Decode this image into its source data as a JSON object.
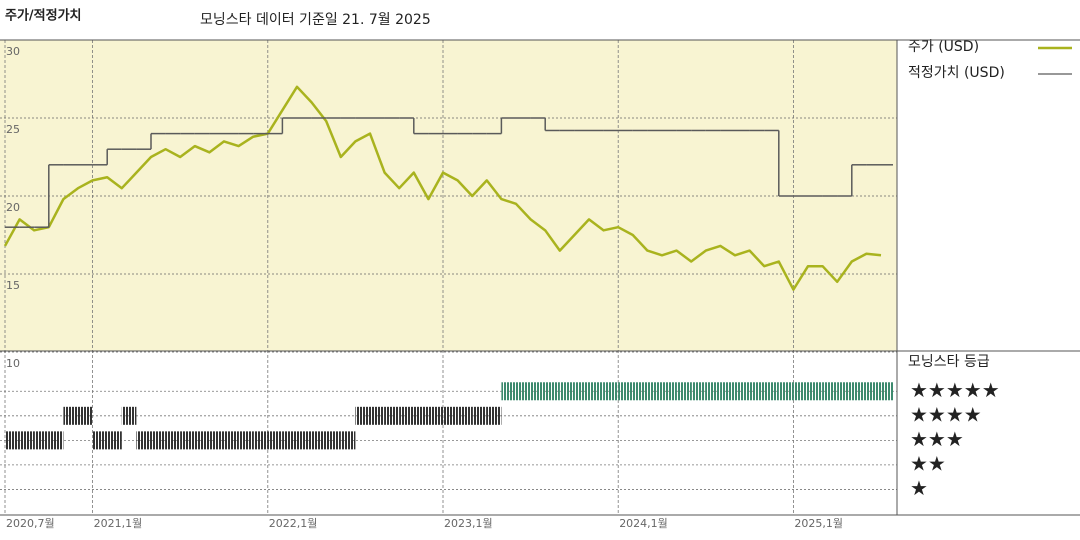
{
  "chart_data": [
    {
      "type": "line",
      "title": "주가/적정가치",
      "subtitle": "모닝스타 데이터 기준일 21. 7월 2025",
      "x": [
        "2020-07",
        "2020-08",
        "2020-09",
        "2020-10",
        "2020-11",
        "2020-12",
        "2021-01",
        "2021-02",
        "2021-03",
        "2021-04",
        "2021-05",
        "2021-06",
        "2021-07",
        "2021-08",
        "2021-09",
        "2021-10",
        "2021-11",
        "2021-12",
        "2022-01",
        "2022-02",
        "2022-03",
        "2022-04",
        "2022-05",
        "2022-06",
        "2022-07",
        "2022-08",
        "2022-09",
        "2022-10",
        "2022-11",
        "2022-12",
        "2023-01",
        "2023-02",
        "2023-03",
        "2023-04",
        "2023-05",
        "2023-06",
        "2023-07",
        "2023-08",
        "2023-09",
        "2023-10",
        "2023-11",
        "2023-12",
        "2024-01",
        "2024-02",
        "2024-03",
        "2024-04",
        "2024-05",
        "2024-06",
        "2024-07",
        "2024-08",
        "2024-09",
        "2024-10",
        "2024-11",
        "2024-12",
        "2025-01",
        "2025-02",
        "2025-03",
        "2025-04",
        "2025-05",
        "2025-06",
        "2025-07"
      ],
      "xticks": [
        {
          "value": "2020-07",
          "label": "2020,7월"
        },
        {
          "value": "2021-01",
          "label": "2021,1월"
        },
        {
          "value": "2022-01",
          "label": "2022,1월"
        },
        {
          "value": "2023-01",
          "label": "2023,1월"
        },
        {
          "value": "2024-01",
          "label": "2024,1월"
        },
        {
          "value": "2025-01",
          "label": "2025,1월"
        }
      ],
      "ylim": [
        10,
        30
      ],
      "yticks": [
        10,
        15,
        20,
        25,
        30
      ],
      "grid": true,
      "series": [
        {
          "name": "주가 (USD)",
          "color": "#a9b31e",
          "values": [
            16.8,
            18.5,
            17.8,
            18.0,
            19.8,
            20.5,
            21,
            21.2,
            20.5,
            21.5,
            22.5,
            23,
            22.5,
            23.2,
            22.8,
            23.5,
            23.2,
            23.8,
            24,
            25.5,
            27,
            26,
            24.8,
            22.5,
            23.5,
            24,
            21.5,
            20.5,
            21.5,
            19.8,
            21.5,
            21,
            20,
            21,
            19.8,
            19.5,
            18.5,
            17.8,
            16.5,
            17.5,
            18.5,
            17.8,
            18,
            17.5,
            16.5,
            16.2,
            16.5,
            15.8,
            16.5,
            16.8,
            16.2,
            16.5,
            15.5,
            15.8,
            14,
            15.5,
            15.5,
            14.5,
            15.8,
            16.3,
            16.2
          ]
        },
        {
          "name": "적정가치 (USD)",
          "color": "#5a5a5a",
          "step": true,
          "values": [
            18,
            18,
            18,
            22,
            22,
            22,
            22,
            23,
            23,
            23,
            24,
            24,
            24,
            24,
            24,
            24,
            24,
            24,
            24,
            25,
            25,
            25,
            25,
            25,
            25,
            25,
            25,
            25,
            24,
            24,
            24,
            24,
            24,
            24,
            25,
            25,
            25,
            24.2,
            24.2,
            24.2,
            24.2,
            24.2,
            24.2,
            24.2,
            24.2,
            24.2,
            24.2,
            24.2,
            24.2,
            24.2,
            24.2,
            24.2,
            24.2,
            20,
            20,
            20,
            20,
            20,
            22,
            22,
            22
          ]
        }
      ]
    },
    {
      "type": "rating",
      "title": "모닝스타 등급",
      "color": "#333333",
      "top_color": "#3d8a6e",
      "ylim": [
        0,
        6.6
      ],
      "yticks": [
        {
          "value": 5,
          "label": "★★★★★"
        },
        {
          "value": 4,
          "label": "★★★★"
        },
        {
          "value": 3,
          "label": "★★★"
        },
        {
          "value": 2,
          "label": "★★"
        },
        {
          "value": 1,
          "label": "★"
        }
      ],
      "values": [
        3,
        3,
        3,
        3,
        4,
        4,
        3,
        3,
        4,
        3,
        3,
        3,
        3,
        3,
        3,
        3,
        3,
        3,
        3,
        3,
        3,
        3,
        3,
        3,
        4,
        4,
        4,
        4,
        4,
        4,
        4,
        4,
        4,
        4,
        5,
        5,
        5,
        5,
        5,
        5,
        5,
        5,
        5,
        5,
        5,
        5,
        5,
        5,
        5,
        5,
        5,
        5,
        5,
        5,
        5,
        5,
        5,
        5,
        5,
        5,
        5
      ]
    }
  ]
}
